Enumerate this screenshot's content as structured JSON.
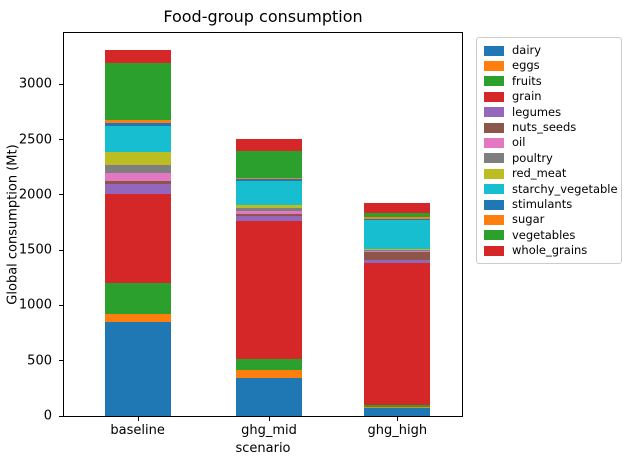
{
  "chart_data": {
    "type": "bar",
    "stacked": true,
    "title": "Food-group consumption",
    "xlabel": "scenario",
    "ylabel": "Global consumption (Mt)",
    "categories": [
      "baseline",
      "ghg_mid",
      "ghg_high"
    ],
    "ylim": [
      0,
      3465
    ],
    "yticks": [
      0,
      500,
      1000,
      1500,
      2000,
      2500,
      3000
    ],
    "grid": false,
    "legend_position": "outside-upper-right",
    "series": [
      {
        "name": "dairy",
        "color": "#1f77b4",
        "values": [
          850,
          345,
          70
        ]
      },
      {
        "name": "eggs",
        "color": "#ff7f0e",
        "values": [
          75,
          70,
          15
        ]
      },
      {
        "name": "fruits",
        "color": "#2ca02c",
        "values": [
          275,
          105,
          15
        ]
      },
      {
        "name": "grain",
        "color": "#d62728",
        "values": [
          810,
          1245,
          1285
        ]
      },
      {
        "name": "legumes",
        "color": "#9467bd",
        "values": [
          90,
          45,
          25
        ]
      },
      {
        "name": "nuts_seeds",
        "color": "#8c564b",
        "values": [
          25,
          15,
          70
        ]
      },
      {
        "name": "oil",
        "color": "#e377c2",
        "values": [
          75,
          30,
          20
        ]
      },
      {
        "name": "poultry",
        "color": "#7f7f7f",
        "values": [
          75,
          30,
          5
        ]
      },
      {
        "name": "red_meat",
        "color": "#bcbd22",
        "values": [
          115,
          25,
          5
        ]
      },
      {
        "name": "starchy_vegetable",
        "color": "#17becf",
        "values": [
          235,
          220,
          265
        ]
      },
      {
        "name": "stimulants",
        "color": "#1f77b4",
        "values": [
          25,
          10,
          8
        ]
      },
      {
        "name": "sugar",
        "color": "#ff7f0e",
        "values": [
          25,
          15,
          15
        ]
      },
      {
        "name": "vegetables",
        "color": "#2ca02c",
        "values": [
          520,
          245,
          35
        ]
      },
      {
        "name": "whole_grains",
        "color": "#d62728",
        "values": [
          115,
          105,
          95
        ]
      }
    ],
    "totals_approx": [
      3310,
      2505,
      1928
    ]
  }
}
